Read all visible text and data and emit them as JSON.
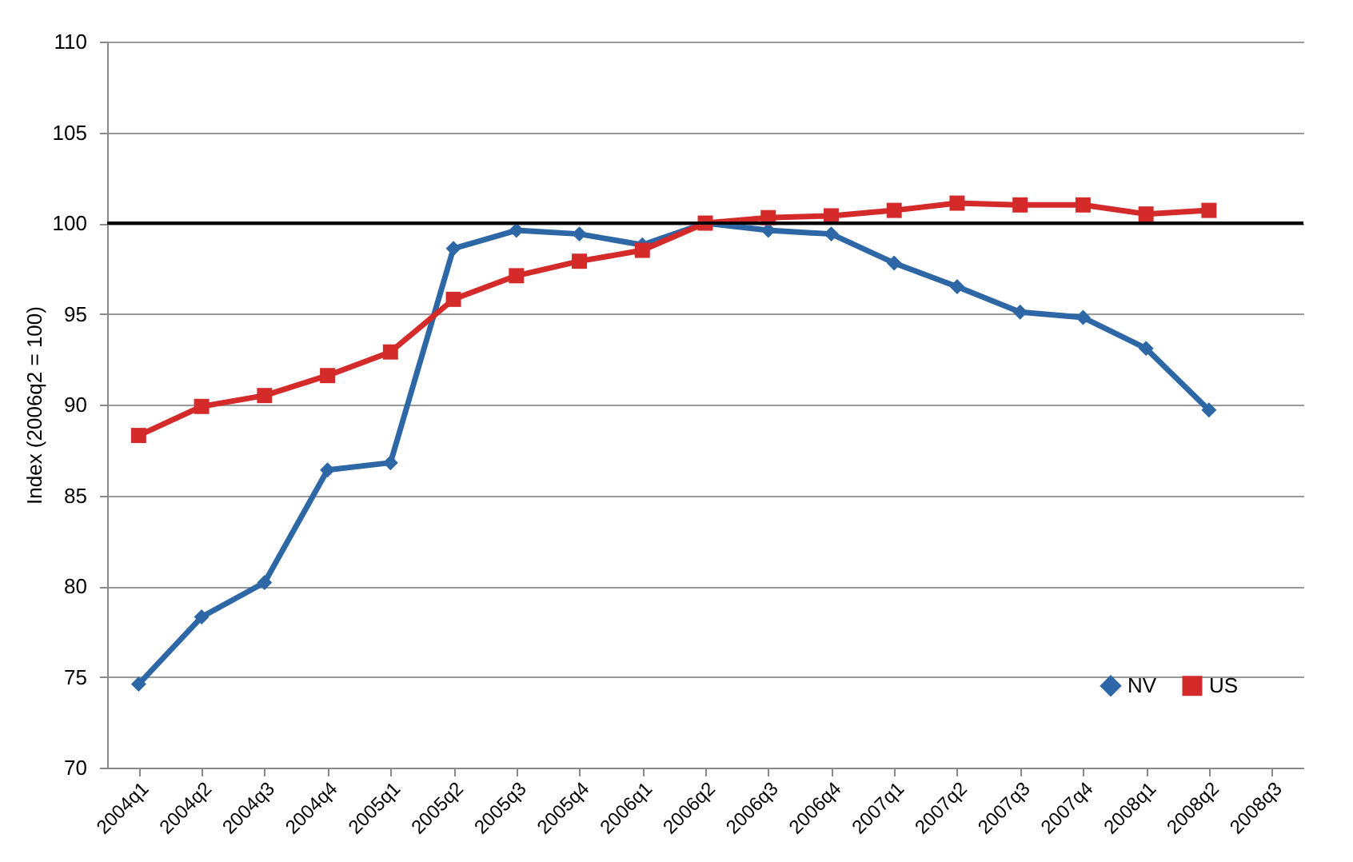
{
  "chart_data": {
    "type": "line",
    "ylabel": "Index (2006q2 = 100)",
    "categories": [
      "2004q1",
      "2004q2",
      "2004q3",
      "2004q4",
      "2005q1",
      "2005q2",
      "2005q3",
      "2005q4",
      "2006q1",
      "2006q2",
      "2006q3",
      "2006q4",
      "2007q1",
      "2007q2",
      "2007q3",
      "2007q4",
      "2008q1",
      "2008q2",
      "2008q3"
    ],
    "series": [
      {
        "name": "NV",
        "color": "#2e67a6",
        "marker": "diamond",
        "values": [
          74.6,
          78.3,
          80.2,
          86.4,
          86.8,
          98.6,
          99.6,
          99.4,
          98.8,
          100,
          99.6,
          99.4,
          97.8,
          96.5,
          95.1,
          94.8,
          93.1,
          89.7,
          null
        ]
      },
      {
        "name": "US",
        "color": "#d42a2a",
        "marker": "square",
        "values": [
          88.3,
          89.9,
          90.5,
          91.6,
          92.9,
          95.8,
          97.1,
          97.9,
          98.5,
          100,
          100.3,
          100.4,
          100.7,
          101.1,
          101.0,
          101.0,
          100.5,
          100.7,
          null
        ]
      }
    ],
    "ylim": [
      70,
      110
    ],
    "yticks": [
      70,
      75,
      80,
      85,
      90,
      95,
      100,
      105,
      110
    ],
    "ref_lines": [
      {
        "axis": "y",
        "value": 100,
        "color": "#000000"
      }
    ],
    "grid": "y",
    "legend": "bottom right"
  }
}
